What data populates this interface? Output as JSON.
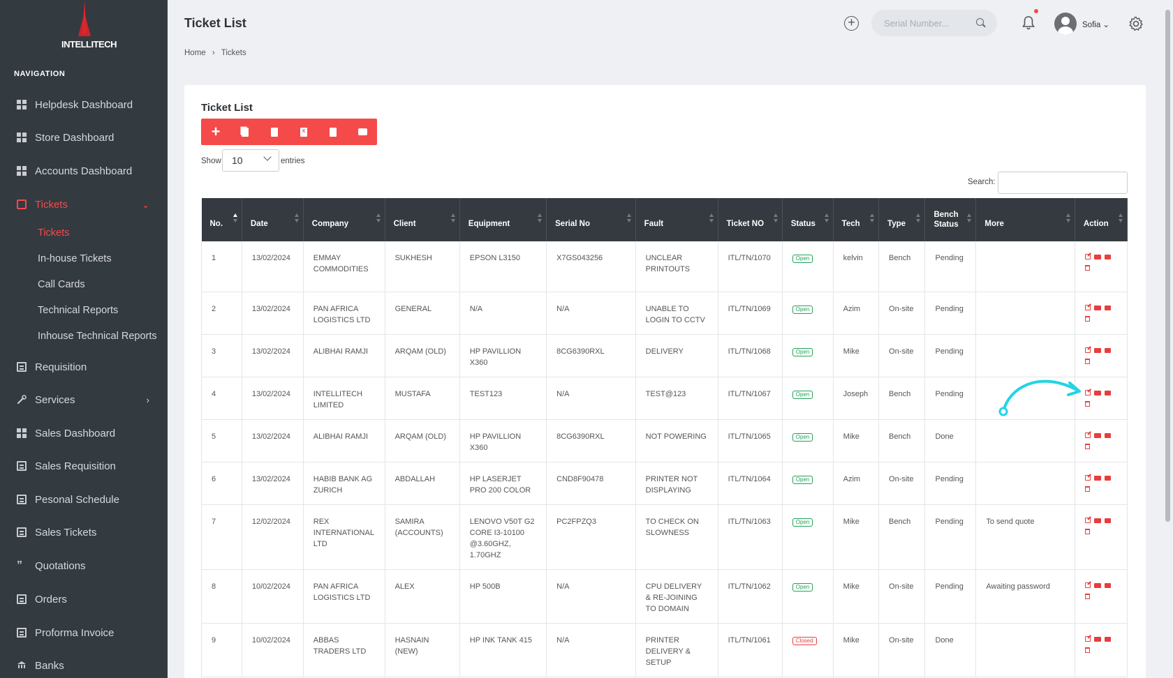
{
  "brand": {
    "name": "INTELLITECH"
  },
  "sidebar": {
    "heading": "NAVIGATION",
    "items": [
      {
        "label": "Helpdesk Dashboard",
        "icon": "grid-icon"
      },
      {
        "label": "Store Dashboard",
        "icon": "grid-icon"
      },
      {
        "label": "Accounts Dashboard",
        "icon": "grid-icon"
      },
      {
        "label": "Tickets",
        "icon": "ticket-icon",
        "active": true,
        "expanded": true
      },
      {
        "label": "Requisition",
        "icon": "list-icon"
      },
      {
        "label": "Services",
        "icon": "wrench-icon"
      },
      {
        "label": "Sales Dashboard",
        "icon": "grid-icon"
      },
      {
        "label": "Sales Requisition",
        "icon": "list-icon"
      },
      {
        "label": "Pesonal Schedule",
        "icon": "calendar-icon"
      },
      {
        "label": "Sales Tickets",
        "icon": "ticket-icon"
      },
      {
        "label": "Quotations",
        "icon": "quote-icon"
      },
      {
        "label": "Orders",
        "icon": "list-icon"
      },
      {
        "label": "Proforma Invoice",
        "icon": "document-icon"
      },
      {
        "label": "Banks",
        "icon": "bank-icon"
      }
    ],
    "sub_items": [
      "Tickets",
      "In-house Tickets",
      "Call Cards",
      "Technical Reports",
      "Inhouse Technical Reports"
    ]
  },
  "header": {
    "title": "Ticket List",
    "breadcrumb": [
      "Home",
      "Tickets"
    ],
    "search_placeholder": "Serial Number...",
    "username": "Sofia"
  },
  "card": {
    "title": "Ticket List",
    "show_label": "Show",
    "entries_value": "10",
    "entries_label": "entries",
    "search_label": "Search:"
  },
  "table": {
    "columns": [
      "No.",
      "Date",
      "Company",
      "Client",
      "Equipment",
      "Serial No",
      "Fault",
      "Ticket NO",
      "Status",
      "Tech",
      "Type",
      "Bench Status",
      "More",
      "Action"
    ],
    "rows": [
      {
        "no": "1",
        "date": "13/02/2024",
        "company": "EMMAY COMMODITIES",
        "client": "SUKHESH",
        "equipment": "EPSON L3150",
        "serial": "X7GS043256",
        "fault": "UNCLEAR PRINTOUTS",
        "ticket": "ITL/TN/1070",
        "status": "Open",
        "tech": "kelvin",
        "type": "Bench",
        "bench": "Pending",
        "more": ""
      },
      {
        "no": "2",
        "date": "13/02/2024",
        "company": "PAN AFRICA LOGISTICS LTD",
        "client": "GENERAL",
        "equipment": "N/A",
        "serial": "N/A",
        "fault": "UNABLE TO LOGIN TO CCTV",
        "ticket": "ITL/TN/1069",
        "status": "Open",
        "tech": "Azim",
        "type": "On-site",
        "bench": "Pending",
        "more": ""
      },
      {
        "no": "3",
        "date": "13/02/2024",
        "company": "ALIBHAI RAMJI",
        "client": "ARQAM (OLD)",
        "equipment": "HP PAVILLION X360",
        "serial": "8CG6390RXL",
        "fault": "DELIVERY",
        "ticket": "ITL/TN/1068",
        "status": "Open",
        "tech": "Mike",
        "type": "On-site",
        "bench": "Pending",
        "more": ""
      },
      {
        "no": "4",
        "date": "13/02/2024",
        "company": "INTELLITECH LIMITED",
        "client": "MUSTAFA",
        "equipment": "TEST123",
        "serial": "N/A",
        "fault": "TEST@123",
        "ticket": "ITL/TN/1067",
        "status": "Open",
        "tech": "Joseph",
        "type": "Bench",
        "bench": "Pending",
        "more": ""
      },
      {
        "no": "5",
        "date": "13/02/2024",
        "company": "ALIBHAI RAMJI",
        "client": "ARQAM (OLD)",
        "equipment": "HP PAVILLION X360",
        "serial": "8CG6390RXL",
        "fault": "NOT POWERING",
        "ticket": "ITL/TN/1065",
        "status": "Open",
        "tech": "Mike",
        "type": "Bench",
        "bench": "Done",
        "more": ""
      },
      {
        "no": "6",
        "date": "13/02/2024",
        "company": "HABIB BANK AG ZURICH",
        "client": "ABDALLAH",
        "equipment": "HP LASERJET PRO 200 COLOR",
        "serial": "CND8F90478",
        "fault": "PRINTER NOT DISPLAYING",
        "ticket": "ITL/TN/1064",
        "status": "Open",
        "tech": "Azim",
        "type": "On-site",
        "bench": "Pending",
        "more": ""
      },
      {
        "no": "7",
        "date": "12/02/2024",
        "company": "REX INTERNATIONAL LTD",
        "client": "SAMIRA (ACCOUNTS)",
        "equipment": "LENOVO V50T G2 CORE i3-10100 @3.60GHZ, 1.70GHZ",
        "serial": "PC2FPZQ3",
        "fault": "TO CHECK ON SLOWNESS",
        "ticket": "ITL/TN/1063",
        "status": "Open",
        "tech": "Mike",
        "type": "Bench",
        "bench": "Pending",
        "more": "To send quote"
      },
      {
        "no": "8",
        "date": "10/02/2024",
        "company": "PAN AFRICA LOGISTICS LTD",
        "client": "ALEX",
        "equipment": "HP 500B",
        "serial": "N/A",
        "fault": "CPU DELIVERY & RE-JOINING TO DOMAIN",
        "ticket": "ITL/TN/1062",
        "status": "Open",
        "tech": "Mike",
        "type": "On-site",
        "bench": "Pending",
        "more": "Awaiting password"
      },
      {
        "no": "9",
        "date": "10/02/2024",
        "company": "ABBAS TRADERS LTD",
        "client": "HASNAIN (NEW)",
        "equipment": "HP INK TANK 415",
        "serial": "N/A",
        "fault": "PRINTER DELIVERY & SETUP",
        "ticket": "ITL/TN/1061",
        "status": "Closed",
        "tech": "Mike",
        "type": "On-site",
        "bench": "Done",
        "more": ""
      }
    ]
  },
  "colors": {
    "accent": "#f44a4a",
    "sidebar_bg": "#333a40",
    "open": "#21a25a",
    "closed": "#e83d3d",
    "annotation": "#22d3e6"
  }
}
